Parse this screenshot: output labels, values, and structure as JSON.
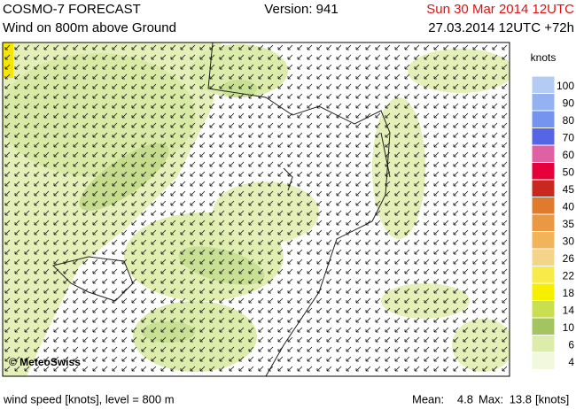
{
  "header": {
    "title": "COSMO-7 FORECAST",
    "version": "Version: 941",
    "valid_time": "Sun 30 Mar 2014 12UTC",
    "subtitle": "Wind on 800m above Ground",
    "run": "27.03.2014 12UTC +72h"
  },
  "map": {
    "credit": "© MeteoSwiss"
  },
  "legend": {
    "unit": "knots",
    "levels": [
      {
        "value": 100,
        "color": "#b4ccf4"
      },
      {
        "value": 90,
        "color": "#94b2f2"
      },
      {
        "value": 80,
        "color": "#7494f0"
      },
      {
        "value": 70,
        "color": "#5466e6"
      },
      {
        "value": 60,
        "color": "#e060a4"
      },
      {
        "value": 50,
        "color": "#e6003a"
      },
      {
        "value": 45,
        "color": "#c8281e"
      },
      {
        "value": 40,
        "color": "#e07a2c"
      },
      {
        "value": 35,
        "color": "#ea9844"
      },
      {
        "value": 30,
        "color": "#f2b458"
      },
      {
        "value": 26,
        "color": "#f4d488"
      },
      {
        "value": 22,
        "color": "#f8ea48"
      },
      {
        "value": 18,
        "color": "#f6f000"
      },
      {
        "value": 14,
        "color": "#cade52"
      },
      {
        "value": 10,
        "color": "#a4c462"
      },
      {
        "value": 6,
        "color": "#dcecaa"
      },
      {
        "value": 4,
        "color": "#f2f8dc"
      }
    ]
  },
  "footer": {
    "description": "wind speed [knots], level = 800 m",
    "mean_label": "Mean:",
    "mean": 4.8,
    "max_label": "Max:",
    "max": 13.8,
    "unit": "[knots]"
  }
}
